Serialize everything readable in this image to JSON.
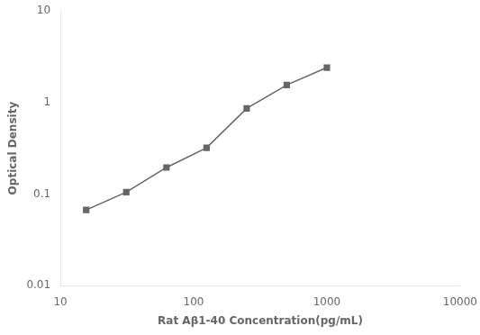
{
  "chart_data": {
    "type": "line",
    "x": [
      15.6,
      31.2,
      62.5,
      125,
      250,
      500,
      1000
    ],
    "values": [
      0.067,
      0.105,
      0.195,
      0.32,
      0.86,
      1.55,
      2.4
    ],
    "xlabel": "Rat Aβ1-40 Concentration(pg/mL)",
    "ylabel": "Optical Density",
    "xlim": [
      10,
      10000
    ],
    "ylim": [
      0.01,
      10
    ],
    "xticks": [
      10,
      100,
      1000,
      10000
    ],
    "yticks": [
      0.01,
      0.1,
      1,
      10
    ],
    "log": true,
    "grid": false,
    "color": "#666666",
    "marker": "square"
  }
}
